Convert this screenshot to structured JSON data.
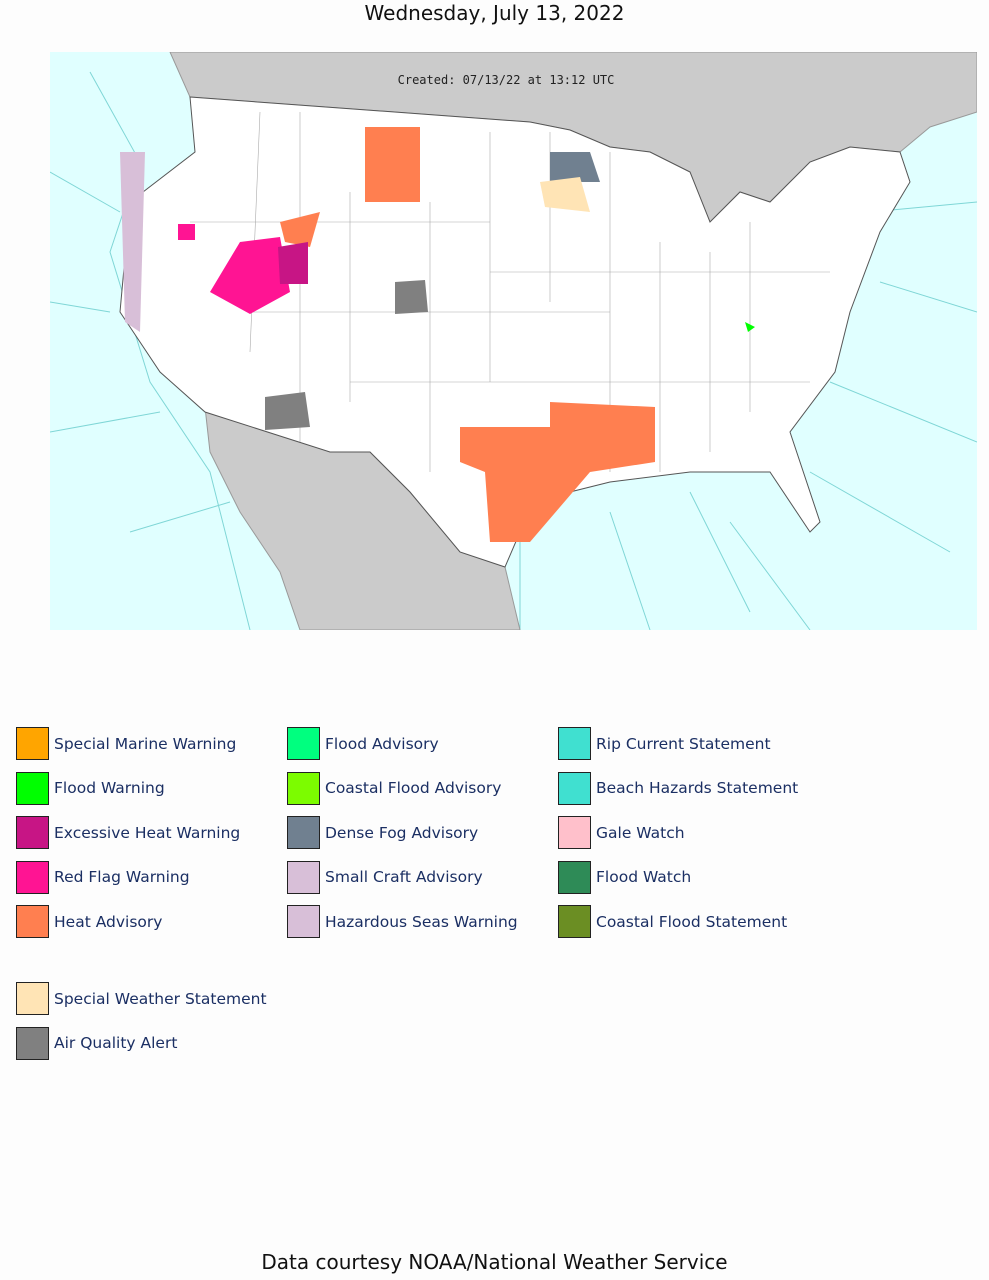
{
  "header": {
    "title": "Wednesday, July 13, 2022"
  },
  "map": {
    "caption": "Created: 07/13/22 at 13:12 UTC"
  },
  "legend": {
    "groups": [
      [
        {
          "label": "Special Marine Warning",
          "color": "#FFA500"
        },
        {
          "label": "Flood Warning",
          "color": "#00FF00"
        },
        {
          "label": "Excessive Heat Warning",
          "color": "#C71585"
        },
        {
          "label": "Red Flag Warning",
          "color": "#FF1493"
        },
        {
          "label": "Heat Advisory",
          "color": "#FF7F50"
        }
      ],
      [
        {
          "label": "Flood Advisory",
          "color": "#00FF7F"
        },
        {
          "label": "Coastal Flood Advisory",
          "color": "#7CFC00"
        },
        {
          "label": "Dense Fog Advisory",
          "color": "#708090"
        },
        {
          "label": "Small Craft Advisory",
          "color": "#D8BFD8"
        },
        {
          "label": "Hazardous Seas Warning",
          "color": "#D8BFD8"
        }
      ],
      [
        {
          "label": "Rip Current Statement",
          "color": "#40E0D0"
        },
        {
          "label": "Beach Hazards Statement",
          "color": "#40E0D0"
        },
        {
          "label": "Gale Watch",
          "color": "#FFC0CB"
        },
        {
          "label": "Flood Watch",
          "color": "#2E8B57"
        },
        {
          "label": "Coastal Flood Statement",
          "color": "#6B8E23"
        }
      ],
      [
        {
          "label": "Special Weather Statement",
          "color": "#FFE4B5"
        },
        {
          "label": "Air Quality Alert",
          "color": "#808080"
        }
      ]
    ]
  },
  "footer": {
    "text": "Data courtesy NOAA/National Weather Service"
  }
}
